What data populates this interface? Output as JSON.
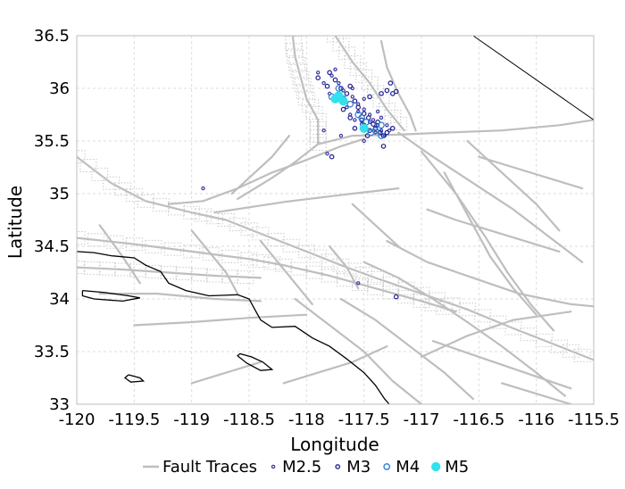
{
  "chart_data": {
    "type": "scatter",
    "title": "",
    "xlabel": "Longitude",
    "ylabel": "Latitude",
    "xlim": [
      -120,
      -115.5
    ],
    "ylim": [
      33,
      36.5
    ],
    "x_ticks": [
      "-120",
      "-119.5",
      "-119",
      "-118.5",
      "-118",
      "-117.5",
      "-117",
      "-116.5",
      "-116",
      "-115.5"
    ],
    "y_ticks": [
      "33",
      "33.5",
      "34",
      "34.5",
      "35",
      "35.5",
      "36",
      "36.5"
    ],
    "grid": true,
    "legend_position": "bottom",
    "legend": [
      {
        "label": "Fault Traces",
        "kind": "line",
        "color": "#bebebe"
      },
      {
        "label": "M2.5",
        "kind": "marker",
        "color": "#3a3aa8",
        "size": 1.6
      },
      {
        "label": "M3",
        "kind": "marker",
        "color": "#1c1c8c",
        "size": 2.2
      },
      {
        "label": "M4",
        "kind": "marker",
        "color": "#2a7ad6",
        "size": 3.2
      },
      {
        "label": "M5",
        "kind": "filled",
        "color": "#33e0ee",
        "size": 4.5
      }
    ],
    "colors": {
      "fault": "#bebebe",
      "fault_dotted": "#c8c8c8",
      "coast": "#000000",
      "grid": "#dcdcdc"
    },
    "fault_traces": [
      [
        [
          -120.0,
          34.58
        ],
        [
          -119.5,
          34.52
        ],
        [
          -119.0,
          34.45
        ],
        [
          -118.5,
          34.38
        ],
        [
          -118.2,
          34.32
        ],
        [
          -117.8,
          34.22
        ],
        [
          -117.4,
          34.1
        ],
        [
          -117.0,
          33.98
        ],
        [
          -116.7,
          33.88
        ]
      ],
      [
        [
          -120.0,
          35.35
        ],
        [
          -119.7,
          35.1
        ],
        [
          -119.4,
          34.93
        ],
        [
          -119.0,
          34.82
        ],
        [
          -118.7,
          34.75
        ],
        [
          -118.4,
          34.62
        ],
        [
          -118.0,
          34.45
        ],
        [
          -117.7,
          34.32
        ],
        [
          -117.4,
          34.2
        ],
        [
          -117.0,
          34.05
        ],
        [
          -116.6,
          33.9
        ],
        [
          -116.2,
          33.72
        ],
        [
          -115.8,
          33.55
        ],
        [
          -115.5,
          33.42
        ]
      ],
      [
        [
          -119.2,
          34.9
        ],
        [
          -118.9,
          34.93
        ],
        [
          -118.6,
          35.05
        ],
        [
          -118.3,
          35.2
        ],
        [
          -118.0,
          35.32
        ],
        [
          -117.7,
          35.45
        ],
        [
          -117.5,
          35.52
        ]
      ],
      [
        [
          -118.8,
          34.82
        ],
        [
          -118.2,
          34.92
        ],
        [
          -117.6,
          35.0
        ],
        [
          -117.2,
          35.05
        ]
      ],
      [
        [
          -118.6,
          34.95
        ],
        [
          -118.3,
          35.15
        ],
        [
          -118.1,
          35.3
        ],
        [
          -117.9,
          35.47
        ],
        [
          -117.6,
          35.55
        ],
        [
          -117.2,
          35.56
        ],
        [
          -116.8,
          35.58
        ],
        [
          -116.3,
          35.6
        ],
        [
          -115.8,
          35.65
        ],
        [
          -115.5,
          35.7
        ]
      ],
      [
        [
          -117.9,
          35.47
        ],
        [
          -117.9,
          35.7
        ],
        [
          -118.0,
          35.9
        ],
        [
          -118.05,
          36.1
        ],
        [
          -118.1,
          36.3
        ],
        [
          -118.12,
          36.5
        ]
      ],
      [
        [
          -117.75,
          36.5
        ],
        [
          -117.6,
          36.25
        ],
        [
          -117.45,
          36.05
        ],
        [
          -117.3,
          35.8
        ],
        [
          -117.15,
          35.6
        ]
      ],
      [
        [
          -117.35,
          36.45
        ],
        [
          -117.3,
          36.2
        ],
        [
          -117.2,
          35.95
        ],
        [
          -117.1,
          35.75
        ],
        [
          -117.05,
          35.6
        ]
      ],
      [
        [
          -117.2,
          35.58
        ],
        [
          -116.9,
          35.35
        ],
        [
          -116.55,
          35.1
        ],
        [
          -116.2,
          34.85
        ],
        [
          -115.9,
          34.6
        ],
        [
          -115.6,
          34.35
        ]
      ],
      [
        [
          -117.0,
          35.4
        ],
        [
          -116.7,
          35.0
        ],
        [
          -116.45,
          34.6
        ],
        [
          -116.25,
          34.25
        ],
        [
          -116.05,
          33.95
        ],
        [
          -115.85,
          33.7
        ]
      ],
      [
        [
          -116.8,
          35.2
        ],
        [
          -116.6,
          34.8
        ],
        [
          -116.4,
          34.4
        ],
        [
          -116.2,
          34.1
        ],
        [
          -116.0,
          33.85
        ]
      ],
      [
        [
          -116.6,
          35.5
        ],
        [
          -116.3,
          35.2
        ],
        [
          -116.0,
          34.9
        ],
        [
          -115.8,
          34.65
        ]
      ],
      [
        [
          -117.3,
          34.55
        ],
        [
          -116.95,
          34.35
        ],
        [
          -116.55,
          34.2
        ],
        [
          -116.15,
          34.05
        ],
        [
          -115.7,
          33.95
        ],
        [
          -115.5,
          33.93
        ]
      ],
      [
        [
          -117.5,
          34.35
        ],
        [
          -117.2,
          34.2
        ],
        [
          -116.9,
          34.0
        ],
        [
          -116.6,
          33.78
        ],
        [
          -116.3,
          33.55
        ],
        [
          -116.0,
          33.3
        ],
        [
          -115.75,
          33.08
        ]
      ],
      [
        [
          -117.7,
          34.0
        ],
        [
          -117.4,
          33.8
        ],
        [
          -117.1,
          33.55
        ],
        [
          -116.8,
          33.3
        ],
        [
          -116.55,
          33.05
        ]
      ],
      [
        [
          -118.1,
          34.0
        ],
        [
          -117.8,
          33.75
        ],
        [
          -117.5,
          33.5
        ],
        [
          -117.25,
          33.22
        ],
        [
          -117.0,
          33.0
        ]
      ],
      [
        [
          -118.2,
          33.2
        ],
        [
          -117.9,
          33.3
        ],
        [
          -117.6,
          33.4
        ],
        [
          -117.3,
          33.55
        ]
      ],
      [
        [
          -119.5,
          33.75
        ],
        [
          -119.0,
          33.78
        ],
        [
          -118.5,
          33.82
        ],
        [
          -118.0,
          33.85
        ]
      ],
      [
        [
          -119.8,
          34.05
        ],
        [
          -119.3,
          34.05
        ],
        [
          -118.8,
          34.0
        ],
        [
          -118.4,
          33.98
        ]
      ],
      [
        [
          -120.0,
          34.3
        ],
        [
          -119.6,
          34.28
        ],
        [
          -119.2,
          34.25
        ],
        [
          -118.8,
          34.22
        ],
        [
          -118.4,
          34.2
        ]
      ],
      [
        [
          -119.8,
          34.7
        ],
        [
          -119.6,
          34.4
        ],
        [
          -119.45,
          34.15
        ]
      ],
      [
        [
          -119.0,
          34.65
        ],
        [
          -118.85,
          34.45
        ],
        [
          -118.7,
          34.25
        ],
        [
          -118.6,
          34.05
        ]
      ],
      [
        [
          -118.4,
          34.55
        ],
        [
          -118.25,
          34.35
        ],
        [
          -118.1,
          34.15
        ],
        [
          -117.95,
          33.95
        ]
      ],
      [
        [
          -117.8,
          34.5
        ],
        [
          -117.65,
          34.3
        ],
        [
          -117.55,
          34.1
        ]
      ],
      [
        [
          -118.65,
          35.0
        ],
        [
          -118.5,
          35.15
        ],
        [
          -118.3,
          35.35
        ],
        [
          -118.15,
          35.55
        ]
      ],
      [
        [
          -117.6,
          34.9
        ],
        [
          -117.4,
          34.7
        ],
        [
          -117.2,
          34.5
        ]
      ],
      [
        [
          -116.95,
          34.85
        ],
        [
          -116.7,
          34.75
        ],
        [
          -116.4,
          34.65
        ],
        [
          -116.1,
          34.55
        ],
        [
          -115.8,
          34.45
        ]
      ],
      [
        [
          -116.5,
          35.35
        ],
        [
          -116.2,
          35.25
        ],
        [
          -115.9,
          35.15
        ],
        [
          -115.6,
          35.05
        ]
      ],
      [
        [
          -116.9,
          33.6
        ],
        [
          -116.5,
          33.45
        ],
        [
          -116.1,
          33.3
        ],
        [
          -115.7,
          33.15
        ]
      ],
      [
        [
          -117.0,
          33.45
        ],
        [
          -116.6,
          33.65
        ],
        [
          -116.2,
          33.8
        ],
        [
          -115.7,
          33.88
        ]
      ],
      [
        [
          -119.0,
          33.2
        ],
        [
          -118.7,
          33.3
        ],
        [
          -118.4,
          33.4
        ]
      ],
      [
        [
          -116.3,
          33.2
        ],
        [
          -116.0,
          33.1
        ],
        [
          -115.7,
          33.0
        ]
      ]
    ],
    "coastline": [
      [
        [
          -120.0,
          34.45
        ],
        [
          -119.85,
          34.44
        ],
        [
          -119.7,
          34.41
        ],
        [
          -119.5,
          34.39
        ],
        [
          -119.4,
          34.32
        ],
        [
          -119.27,
          34.26
        ],
        [
          -119.2,
          34.15
        ],
        [
          -119.05,
          34.08
        ],
        [
          -118.85,
          34.03
        ],
        [
          -118.6,
          34.04
        ],
        [
          -118.5,
          34.0
        ],
        [
          -118.45,
          33.9
        ],
        [
          -118.4,
          33.8
        ],
        [
          -118.3,
          33.73
        ],
        [
          -118.1,
          33.74
        ],
        [
          -117.95,
          33.63
        ],
        [
          -117.8,
          33.55
        ],
        [
          -117.65,
          33.43
        ],
        [
          -117.5,
          33.3
        ],
        [
          -117.4,
          33.18
        ],
        [
          -117.32,
          33.05
        ],
        [
          -117.28,
          33.0
        ]
      ]
    ],
    "islands": [
      [
        [
          -119.95,
          34.08
        ],
        [
          -119.75,
          34.06
        ],
        [
          -119.55,
          34.03
        ],
        [
          -119.45,
          34.01
        ],
        [
          -119.6,
          33.98
        ],
        [
          -119.85,
          34.0
        ],
        [
          -119.95,
          34.03
        ],
        [
          -119.95,
          34.08
        ]
      ],
      [
        [
          -118.58,
          33.48
        ],
        [
          -118.48,
          33.45
        ],
        [
          -118.38,
          33.4
        ],
        [
          -118.3,
          33.33
        ],
        [
          -118.4,
          33.32
        ],
        [
          -118.52,
          33.39
        ],
        [
          -118.6,
          33.46
        ],
        [
          -118.58,
          33.48
        ]
      ],
      [
        [
          -119.55,
          33.28
        ],
        [
          -119.45,
          33.25
        ],
        [
          -119.42,
          33.22
        ],
        [
          -119.53,
          33.21
        ],
        [
          -119.58,
          33.25
        ],
        [
          -119.55,
          33.28
        ]
      ]
    ],
    "border_line": [
      [
        -116.55,
        36.5
      ],
      [
        -115.5,
        35.7
      ]
    ],
    "earthquakes": {
      "M2.5": [
        [
          -117.75,
          36.18
        ],
        [
          -117.78,
          36.12
        ],
        [
          -117.72,
          36.05
        ],
        [
          -117.68,
          35.98
        ],
        [
          -117.6,
          35.92
        ],
        [
          -117.55,
          35.85
        ],
        [
          -117.5,
          35.8
        ],
        [
          -117.45,
          35.75
        ],
        [
          -117.42,
          35.7
        ],
        [
          -117.38,
          35.65
        ],
        [
          -117.35,
          35.6
        ],
        [
          -117.32,
          35.55
        ],
        [
          -117.8,
          35.95
        ],
        [
          -117.7,
          35.88
        ],
        [
          -117.62,
          35.75
        ],
        [
          -117.58,
          35.7
        ],
        [
          -117.52,
          35.66
        ],
        [
          -117.48,
          35.62
        ],
        [
          -117.4,
          35.58
        ],
        [
          -117.45,
          35.68
        ],
        [
          -117.55,
          35.78
        ],
        [
          -117.65,
          35.82
        ],
        [
          -117.72,
          35.92
        ],
        [
          -117.85,
          36.05
        ],
        [
          -117.9,
          36.15
        ],
        [
          -117.6,
          36.0
        ],
        [
          -117.5,
          35.9
        ],
        [
          -117.35,
          35.72
        ],
        [
          -117.3,
          35.65
        ],
        [
          -117.28,
          35.6
        ],
        [
          -117.82,
          35.38
        ],
        [
          -118.9,
          35.05
        ],
        [
          -117.55,
          34.15
        ],
        [
          -117.38,
          35.78
        ],
        [
          -117.85,
          35.6
        ],
        [
          -117.7,
          35.55
        ],
        [
          -117.5,
          35.5
        ]
      ],
      "M3": [
        [
          -117.8,
          36.15
        ],
        [
          -117.75,
          36.08
        ],
        [
          -117.7,
          36.0
        ],
        [
          -117.65,
          35.95
        ],
        [
          -117.58,
          35.88
        ],
        [
          -117.55,
          35.82
        ],
        [
          -117.5,
          35.76
        ],
        [
          -117.46,
          35.72
        ],
        [
          -117.42,
          35.66
        ],
        [
          -117.4,
          35.62
        ],
        [
          -117.36,
          35.58
        ],
        [
          -117.33,
          35.55
        ],
        [
          -117.3,
          35.58
        ],
        [
          -117.62,
          35.72
        ],
        [
          -117.5,
          35.65
        ],
        [
          -117.45,
          35.6
        ],
        [
          -117.3,
          35.98
        ],
        [
          -117.25,
          35.95
        ],
        [
          -117.22,
          35.97
        ],
        [
          -117.27,
          36.05
        ],
        [
          -117.35,
          35.95
        ],
        [
          -117.45,
          35.92
        ],
        [
          -117.62,
          36.02
        ],
        [
          -117.82,
          36.02
        ],
        [
          -117.9,
          36.1
        ],
        [
          -117.52,
          35.7
        ],
        [
          -117.38,
          35.68
        ],
        [
          -117.47,
          35.55
        ],
        [
          -117.33,
          35.45
        ],
        [
          -117.25,
          35.62
        ],
        [
          -117.78,
          35.35
        ],
        [
          -117.22,
          34.02
        ],
        [
          -117.58,
          35.62
        ],
        [
          -117.68,
          35.8
        ]
      ],
      "M4": [
        [
          -117.72,
          36.0
        ],
        [
          -117.62,
          35.85
        ],
        [
          -117.55,
          35.75
        ],
        [
          -117.48,
          35.68
        ],
        [
          -117.4,
          35.6
        ],
        [
          -117.35,
          35.55
        ],
        [
          -117.78,
          35.92
        ],
        [
          -117.44,
          35.58
        ],
        [
          -117.52,
          35.72
        ],
        [
          -117.35,
          35.65
        ],
        [
          -117.68,
          35.9
        ]
      ],
      "M5": [
        [
          -117.72,
          35.93
        ],
        [
          -117.68,
          35.88
        ],
        [
          -117.75,
          35.9
        ],
        [
          -117.5,
          35.62
        ]
      ]
    }
  }
}
